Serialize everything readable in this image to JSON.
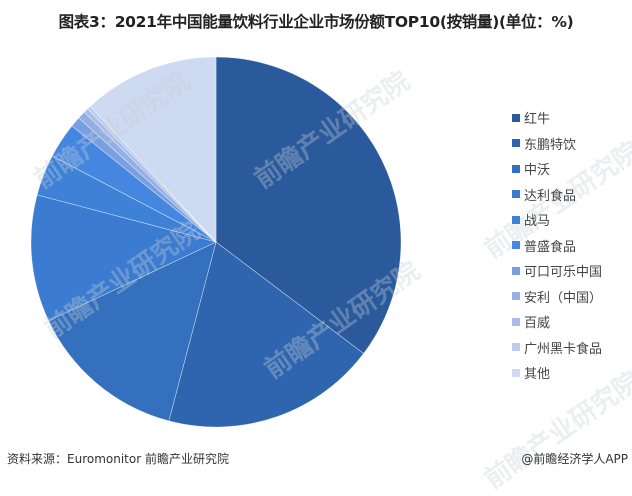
{
  "title": "图表3：2021年中国能量饮料行业企业市场份额TOP10(按销量)(单位：%)",
  "source": "资料来源：Euromonitor 前瞻产业研究院",
  "credit": "@前瞻经济学人APP",
  "watermark": "前瞻产业研究院",
  "chart_data": {
    "type": "pie",
    "title": "2021年中国能量饮料行业企业市场份额TOP10(按销量)(单位：%)",
    "start_angle": "12 o'clock, clockwise",
    "legend_position": "right",
    "categories": [
      "红牛",
      "东鹏特饮",
      "中沃",
      "达利食品",
      "战马",
      "普盛食品",
      "可口可乐中国",
      "安利（中国）",
      "百威",
      "广州黑卡食品",
      "其他"
    ],
    "values": [
      35.3,
      18.8,
      13.9,
      11.1,
      3.6,
      3.1,
      0.9,
      0.7,
      0.4,
      0.3,
      11.9
    ],
    "colors": [
      "#2a5a9b",
      "#2f65ae",
      "#3470bd",
      "#3b7bd0",
      "#3e82d8",
      "#4486e0",
      "#7a9fe0",
      "#93afe3",
      "#a8bde8",
      "#bccbee",
      "#ced9f2"
    ]
  }
}
